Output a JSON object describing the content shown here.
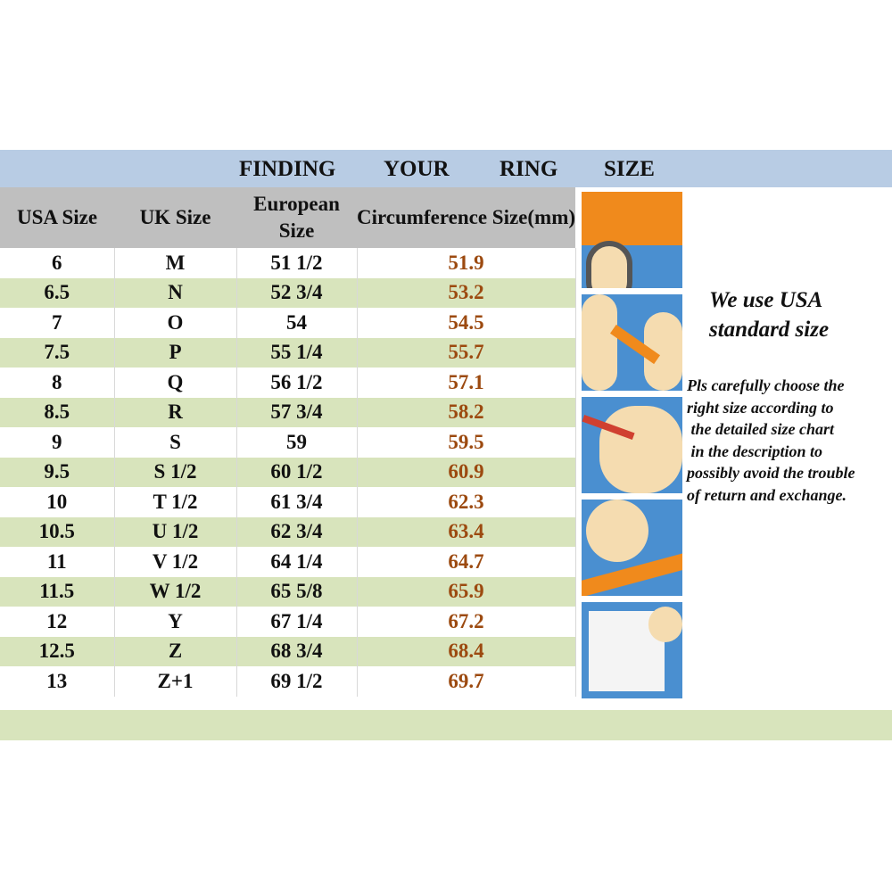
{
  "title": {
    "words": [
      "FINDING",
      "YOUR",
      "RING",
      "SIZE"
    ]
  },
  "columns": [
    "USA  Size",
    "UK  Size",
    "European Size",
    "Circumference Size(mm)"
  ],
  "rows": [
    [
      "6",
      "M",
      "51  1/2",
      "51.9"
    ],
    [
      "6.5",
      "N",
      "52  3/4",
      "53.2"
    ],
    [
      "7",
      "O",
      "54",
      "54.5"
    ],
    [
      "7.5",
      "P",
      "55  1/4",
      "55.7"
    ],
    [
      "8",
      "Q",
      "56  1/2",
      "57.1"
    ],
    [
      "8.5",
      "R",
      "57  3/4",
      "58.2"
    ],
    [
      "9",
      "S",
      "59",
      "59.5"
    ],
    [
      "9.5",
      "S 1/2",
      "60  1/2",
      "60.9"
    ],
    [
      "10",
      "T 1/2",
      "61  3/4",
      "62.3"
    ],
    [
      "10.5",
      "U 1/2",
      "62  3/4",
      "63.4"
    ],
    [
      "11",
      "V 1/2",
      "64  1/4",
      "64.7"
    ],
    [
      "11.5",
      "W 1/2",
      "65  5/8",
      "65.9"
    ],
    [
      "12",
      "Y",
      "67  1/4",
      "67.2"
    ],
    [
      "12.5",
      "Z",
      "68  3/4",
      "68.4"
    ],
    [
      "13",
      "Z+1",
      "69  1/2",
      "69.7"
    ]
  ],
  "note_heading": "We use USA standard  size",
  "note_body": "Pls carefully choose the\nright size according to\n the detailed size chart\n in the description to\npossibly avoid the trouble\nof return and exchange.",
  "colors": {
    "title_bar": "#b8cce4",
    "header": "#bfbfbf",
    "alt_row": "#d8e4bc",
    "circumference_text": "#9c4a10"
  },
  "illustrations": [
    "cutting-paper-strip",
    "wrapping-strip-around-finger",
    "marking-strip-with-pen",
    "measuring-strip-with-ruler",
    "reading-size-chart"
  ]
}
